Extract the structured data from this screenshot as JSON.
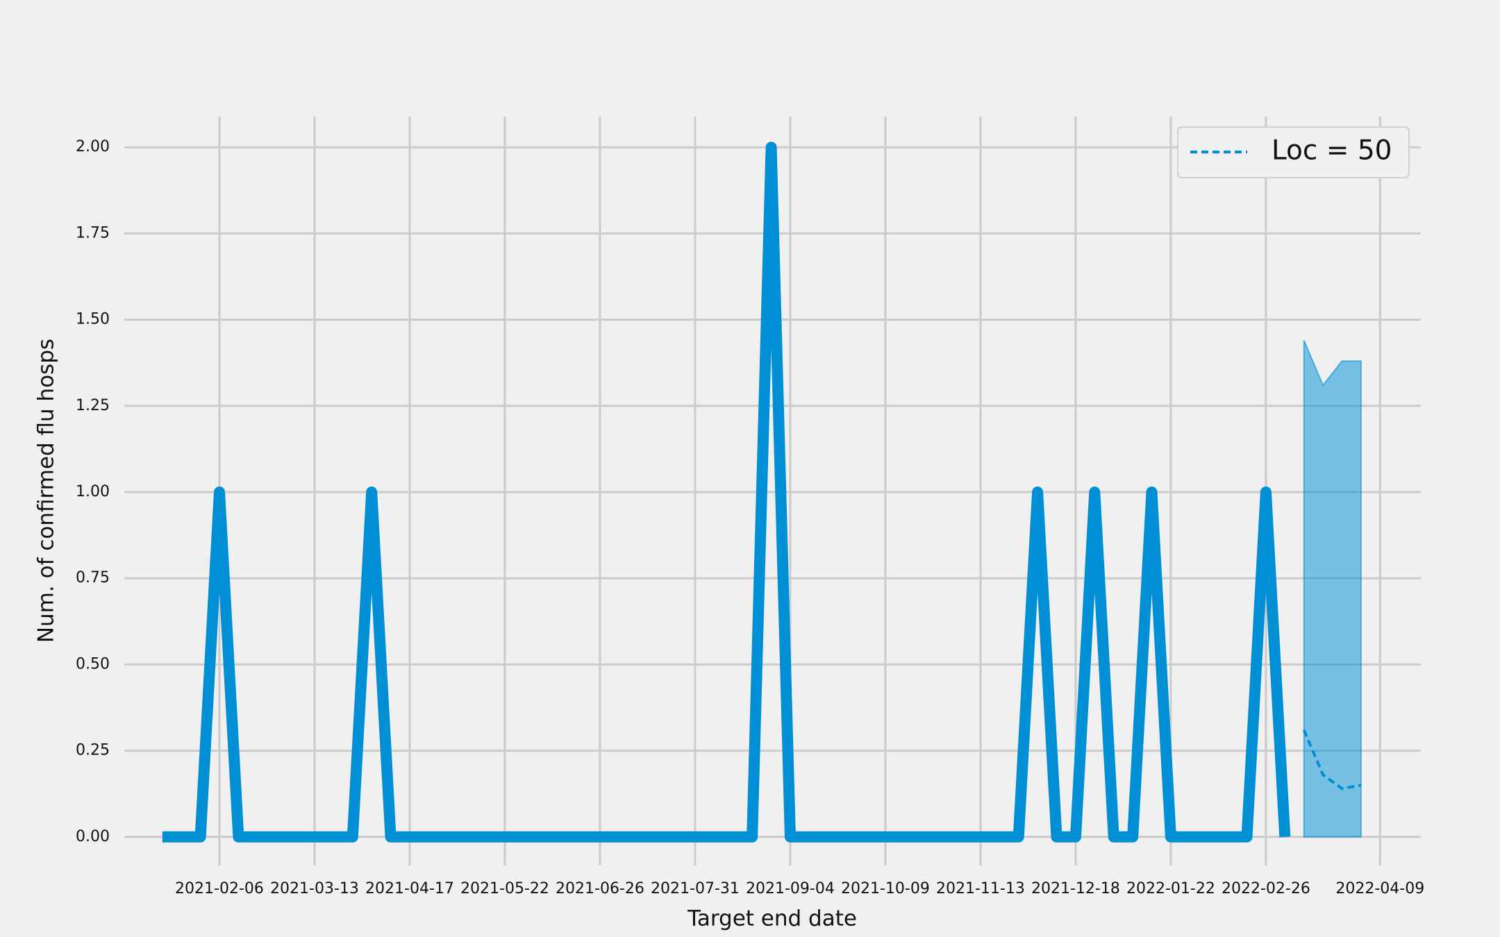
{
  "chart_data": {
    "type": "line",
    "xlabel": "Target end date",
    "ylabel": "Num. of confirmed flu hosps",
    "grid": true,
    "legend": "upper right",
    "xlim": [
      "2021-01-02",
      "2022-04-24"
    ],
    "ylim": [
      -0.083,
      2.089
    ],
    "xticks": [
      "2021-02-06",
      "2021-03-13",
      "2021-04-17",
      "2021-05-22",
      "2021-06-26",
      "2021-07-31",
      "2021-09-04",
      "2021-10-09",
      "2021-11-13",
      "2021-12-18",
      "2022-01-22",
      "2022-02-26",
      "2022-04-09"
    ],
    "yticks": [
      {
        "value": 0,
        "label": "0.00"
      },
      {
        "value": 0.25,
        "label": "0.25"
      },
      {
        "value": 0.5,
        "label": "0.50"
      },
      {
        "value": 0.75,
        "label": "0.75"
      },
      {
        "value": 1,
        "label": "1.00"
      },
      {
        "value": 1.25,
        "label": "1.25"
      },
      {
        "value": 1.5,
        "label": "1.50"
      },
      {
        "value": 1.75,
        "label": "1.75"
      },
      {
        "value": 2,
        "label": "2.00"
      }
    ],
    "series": [
      {
        "color": "#008fd5",
        "style": "solid",
        "x": [
          "2021-01-16",
          "2021-01-23",
          "2021-01-30",
          "2021-02-06",
          "2021-02-13",
          "2021-02-20",
          "2021-02-27",
          "2021-03-06",
          "2021-03-13",
          "2021-03-20",
          "2021-03-27",
          "2021-04-03",
          "2021-04-10",
          "2021-04-17",
          "2021-04-24",
          "2021-05-01",
          "2021-05-08",
          "2021-05-15",
          "2021-05-22",
          "2021-05-29",
          "2021-06-05",
          "2021-06-12",
          "2021-06-19",
          "2021-06-26",
          "2021-07-03",
          "2021-07-10",
          "2021-07-17",
          "2021-07-24",
          "2021-07-31",
          "2021-08-07",
          "2021-08-14",
          "2021-08-21",
          "2021-08-28",
          "2021-09-04",
          "2021-09-11",
          "2021-09-18",
          "2021-09-25",
          "2021-10-02",
          "2021-10-09",
          "2021-10-16",
          "2021-10-23",
          "2021-10-30",
          "2021-11-06",
          "2021-11-13",
          "2021-11-20",
          "2021-11-27",
          "2021-12-04",
          "2021-12-11",
          "2021-12-18",
          "2021-12-25",
          "2022-01-01",
          "2022-01-08",
          "2022-01-15",
          "2022-01-22",
          "2022-01-29",
          "2022-02-05",
          "2022-02-12",
          "2022-02-19",
          "2022-02-26",
          "2022-03-05"
        ],
        "values": [
          0,
          0,
          0,
          1,
          0,
          0,
          0,
          0,
          0,
          0,
          0,
          1,
          0,
          0,
          0,
          0,
          0,
          0,
          0,
          0,
          0,
          0,
          0,
          0,
          0,
          0,
          0,
          0,
          0,
          0,
          0,
          0,
          2,
          0,
          0,
          0,
          0,
          0,
          0,
          0,
          0,
          0,
          0,
          0,
          0,
          0,
          1,
          0,
          0,
          1,
          0,
          0,
          1,
          0,
          0,
          0,
          0,
          0,
          1,
          0
        ]
      },
      {
        "name": "Loc = 50",
        "color": "#008fd5",
        "style": "dashed",
        "band_color": "#008fd5",
        "x": [
          "2022-03-12",
          "2022-03-19",
          "2022-03-26",
          "2022-04-02"
        ],
        "values": [
          0.31,
          0.18,
          0.14,
          0.15
        ],
        "lower": [
          0,
          0,
          0,
          0
        ],
        "upper": [
          1.44,
          1.31,
          1.38,
          1.38
        ]
      }
    ]
  }
}
